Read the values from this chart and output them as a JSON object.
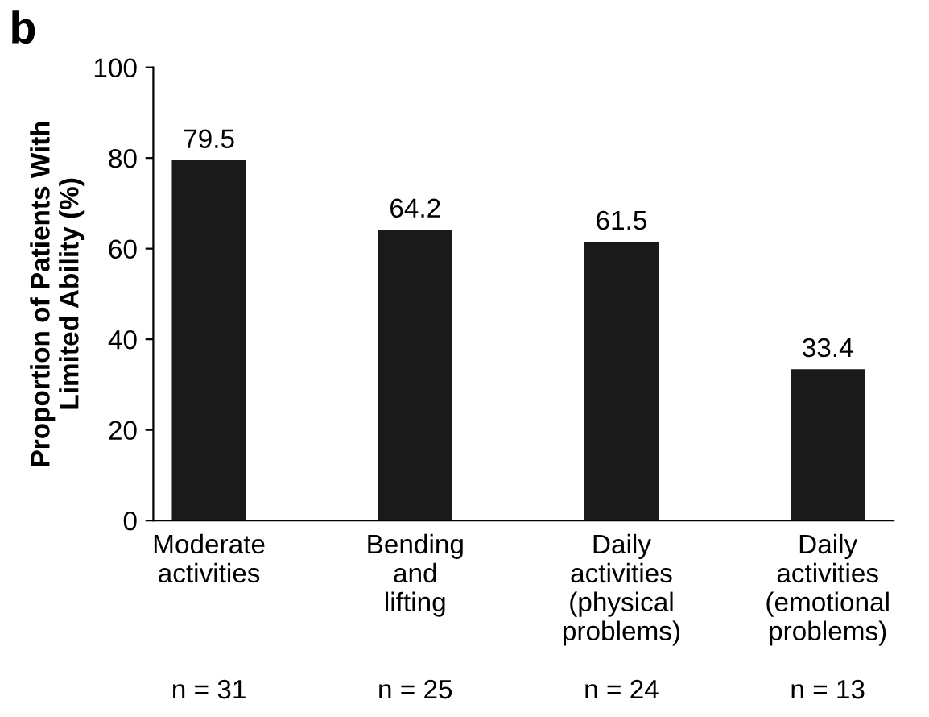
{
  "chart_data": {
    "type": "bar",
    "ylabel": "Proportion of Patients With\nLimited Ability (%)",
    "categories": [
      "Moderate\nactivities",
      "Bending\nand\nlifting",
      "Daily\nactivities\n(physical\nproblems)",
      "Daily\nactivities\n(emotional\nproblems)"
    ],
    "values": [
      79.5,
      64.2,
      61.5,
      33.4
    ],
    "color": "#1a1a1a",
    "data_labels": true,
    "ylim": [
      0,
      100
    ],
    "yticks": [
      0,
      20,
      40,
      60,
      80,
      100
    ],
    "grid": false,
    "legend": false,
    "annotations": [
      "b",
      "n = 31",
      "n = 25",
      "n = 24",
      "n = 13"
    ]
  }
}
